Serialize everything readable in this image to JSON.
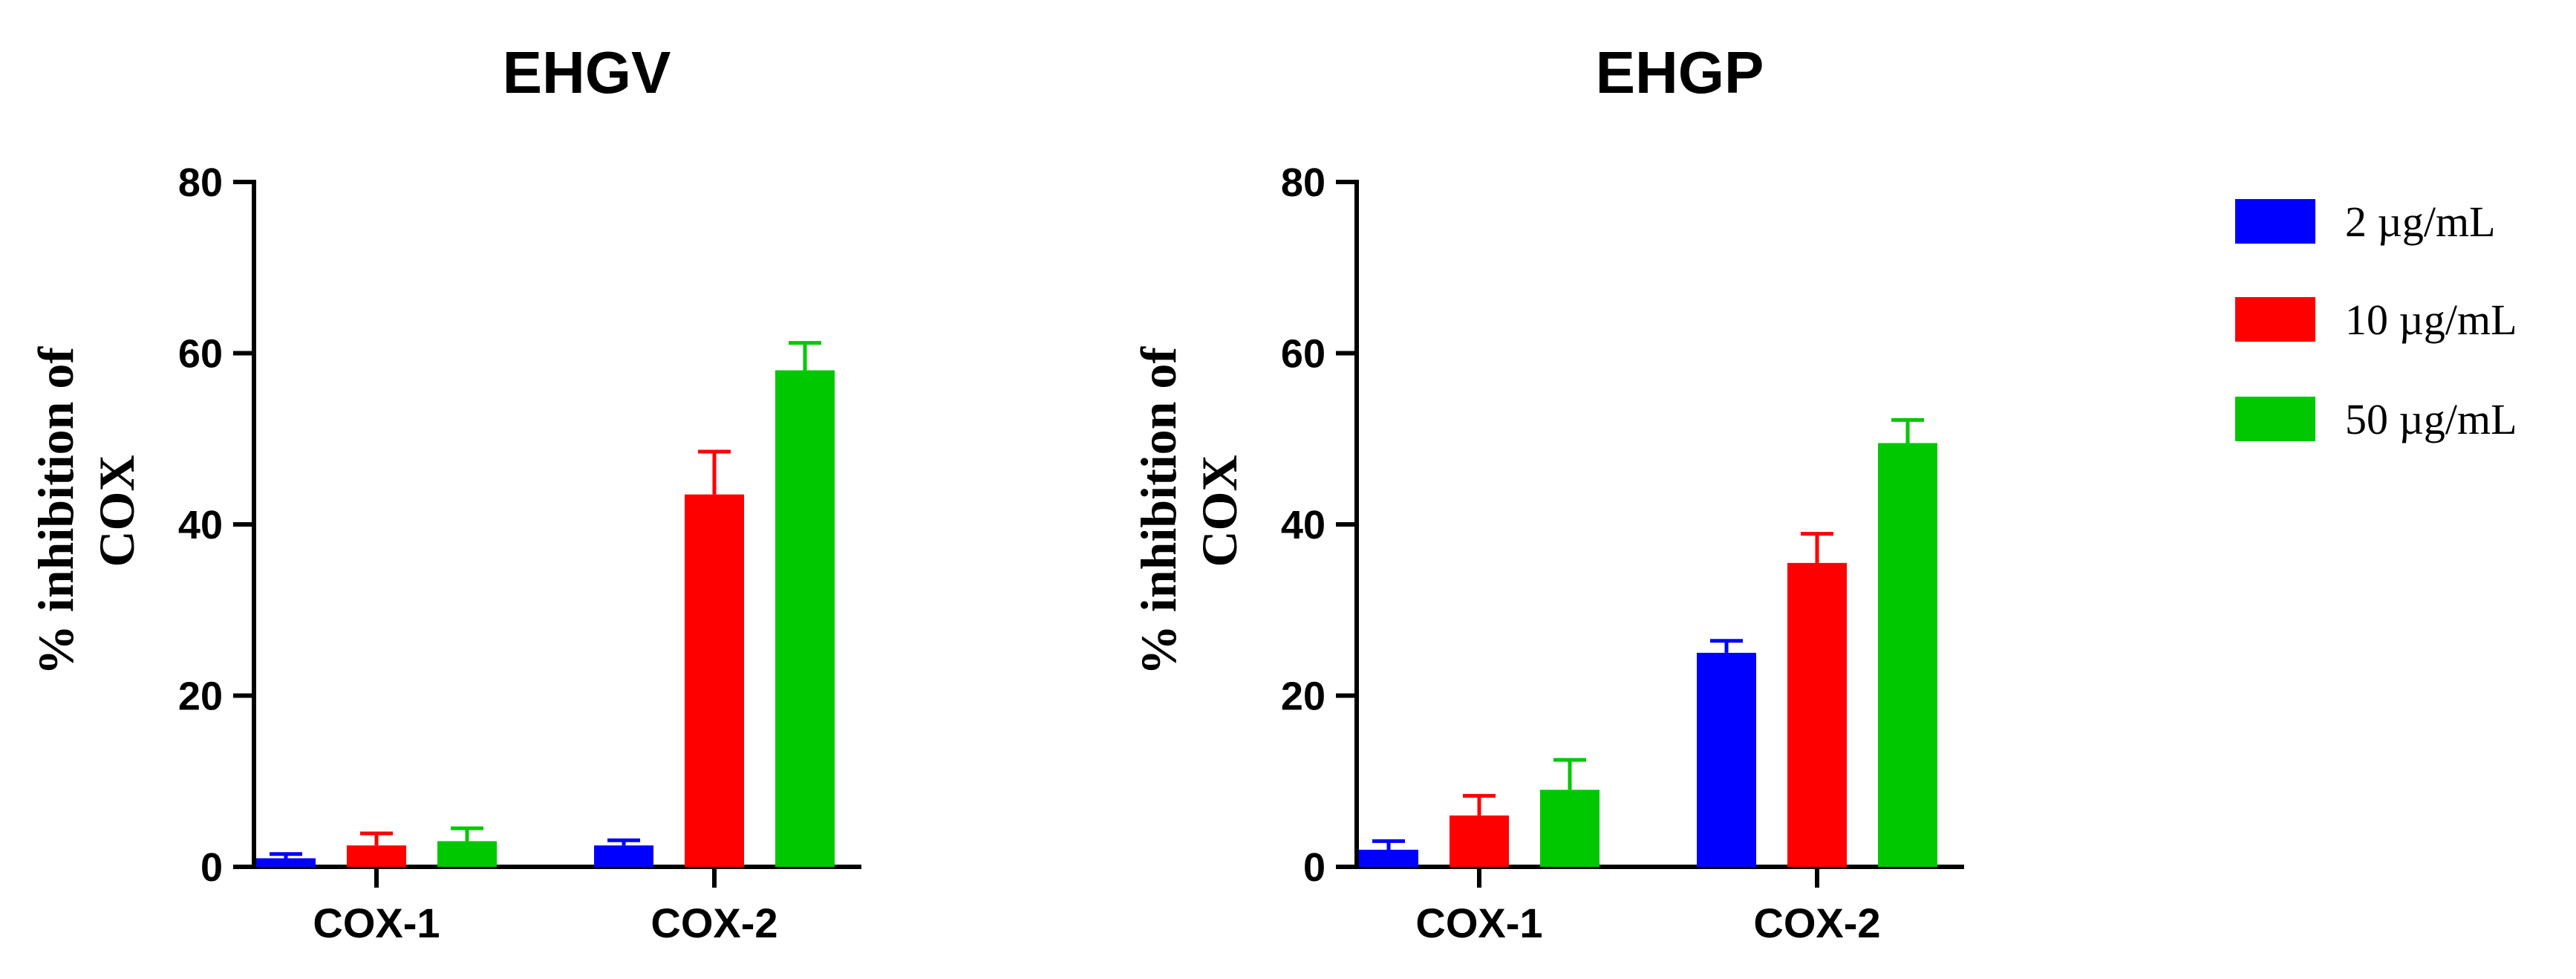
{
  "chart_data": [
    {
      "type": "bar",
      "title": "EHGV",
      "categories": [
        "COX-1",
        "COX-2"
      ],
      "ylabel_line1": "% inhibition of",
      "ylabel_line2": "COX",
      "ylim": [
        0,
        80
      ],
      "yticks": [
        0,
        20,
        40,
        60,
        80
      ],
      "series": [
        {
          "name": "2 µg/mL",
          "color": "#0000ff",
          "values": [
            1.0,
            2.5
          ],
          "errors": [
            0.5,
            0.6
          ]
        },
        {
          "name": "10 µg/mL",
          "color": "#ff0000",
          "values": [
            2.5,
            43.5
          ],
          "errors": [
            1.4,
            5.0
          ]
        },
        {
          "name": "50 µg/mL",
          "color": "#00c800",
          "values": [
            3.0,
            58.0
          ],
          "errors": [
            1.5,
            3.2
          ]
        }
      ]
    },
    {
      "type": "bar",
      "title": "EHGP",
      "categories": [
        "COX-1",
        "COX-2"
      ],
      "ylabel_line1": "% inhibition of",
      "ylabel_line2": "COX",
      "ylim": [
        0,
        80
      ],
      "yticks": [
        0,
        20,
        40,
        60,
        80
      ],
      "series": [
        {
          "name": "2 µg/mL",
          "color": "#0000ff",
          "values": [
            2.0,
            25.0
          ],
          "errors": [
            1.0,
            1.4
          ]
        },
        {
          "name": "10 µg/mL",
          "color": "#ff0000",
          "values": [
            6.0,
            35.5
          ],
          "errors": [
            2.3,
            3.4
          ]
        },
        {
          "name": "50 µg/mL",
          "color": "#00c800",
          "values": [
            9.0,
            49.5
          ],
          "errors": [
            3.5,
            2.7
          ]
        }
      ]
    }
  ],
  "legend": {
    "placement": "right",
    "items": [
      {
        "label": "2 µg/mL",
        "color": "#0000ff"
      },
      {
        "label": "10 µg/mL",
        "color": "#ff0000"
      },
      {
        "label": "50 µg/mL",
        "color": "#00c800"
      }
    ]
  }
}
